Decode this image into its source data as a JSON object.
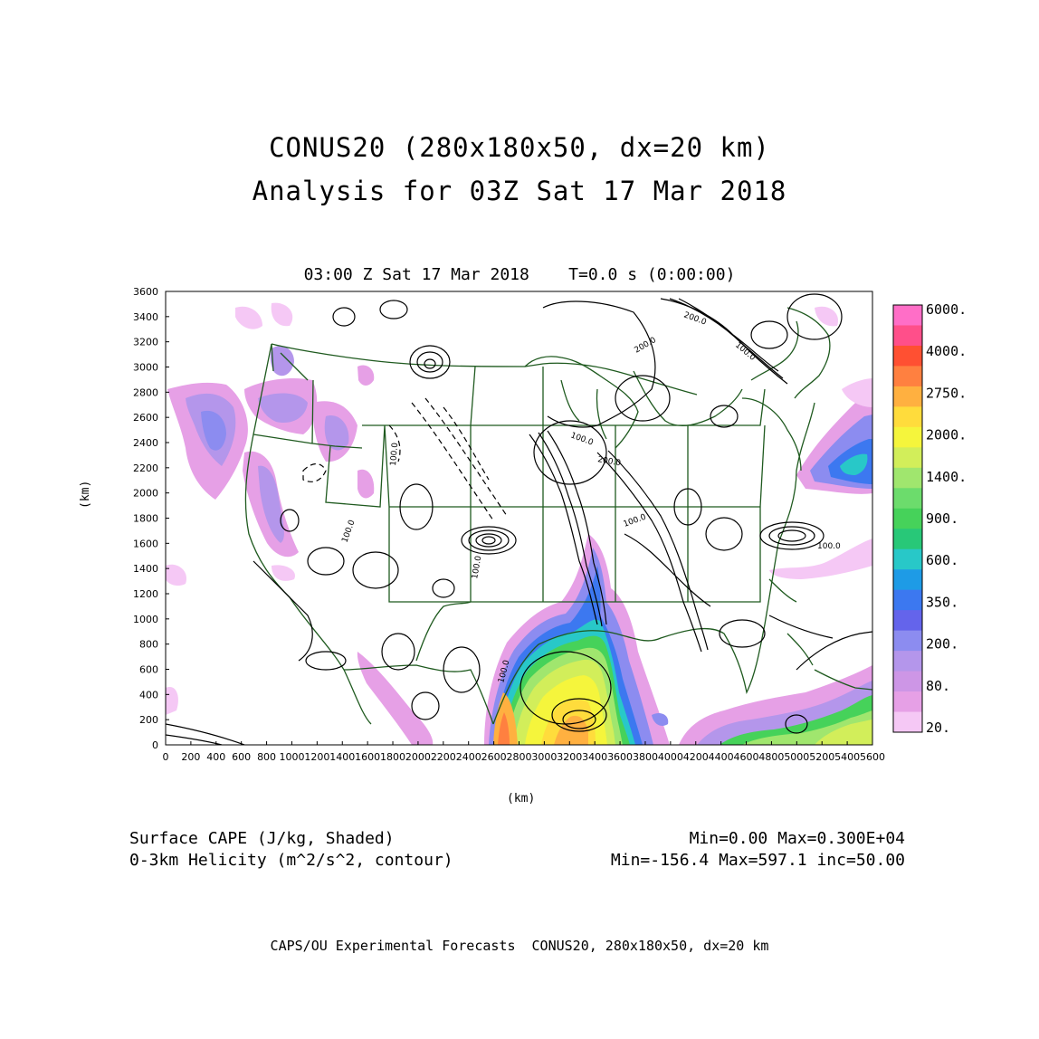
{
  "title": {
    "line1": "CONUS20 (280x180x50, dx=20 km)",
    "line2": "Analysis for 03Z Sat 17 Mar 2018"
  },
  "subtitle": "03:00 Z Sat 17 Mar 2018    T=0.0 s (0:00:00)",
  "axes": {
    "x_unit": "(km)",
    "y_unit": "(km)",
    "x_ticks": [
      "0",
      "200",
      "400",
      "600",
      "800",
      "1000",
      "1200",
      "1400",
      "1600",
      "1800",
      "2000",
      "2200",
      "2400",
      "2600",
      "2800",
      "3000",
      "3200",
      "3400",
      "3600",
      "3800",
      "4000",
      "4200",
      "4400",
      "4600",
      "4800",
      "5000",
      "5200",
      "5400",
      "5600"
    ],
    "y_ticks": [
      "0",
      "200",
      "400",
      "600",
      "800",
      "1000",
      "1200",
      "1400",
      "1600",
      "1800",
      "2000",
      "2200",
      "2400",
      "2600",
      "2800",
      "3000",
      "3200",
      "3400",
      "3600"
    ],
    "x_range": [
      0,
      5600
    ],
    "y_range": [
      0,
      3600
    ]
  },
  "colorbar": {
    "labels": [
      "6000.",
      "4000.",
      "2750.",
      "2000.",
      "1400.",
      "900.",
      "600.",
      "350.",
      "200.",
      "80.",
      "20."
    ],
    "colors": [
      "#ff6ec7",
      "#ff4f8a",
      "#ff5032",
      "#ff8040",
      "#ffb040",
      "#ffdc3c",
      "#f5f53c",
      "#d2ee5a",
      "#a0e66e",
      "#6cdc6c",
      "#46d25a",
      "#28c878",
      "#28c8c8",
      "#1e9be6",
      "#3c78f0",
      "#6464eb",
      "#8c8cf0",
      "#b496eb",
      "#cd96e6",
      "#e6a0e6",
      "#f5c8f5"
    ]
  },
  "contour_labels": [
    "100.0",
    "200.0",
    "100.0",
    "200.0",
    "100.0",
    "100.0",
    "200.0",
    "100.0",
    "100.0",
    "100.0",
    "100.0"
  ],
  "variables": {
    "shaded": "Surface CAPE (J/kg, Shaded)",
    "contour": "0-3km Helicity (m^2/s^2, contour)",
    "shaded_stats": "Min=0.00 Max=0.300E+04",
    "contour_stats": "Min=-156.4 Max=597.1 inc=50.00"
  },
  "footer": "CAPS/OU Experimental Forecasts  CONUS20, 280x180x50, dx=20 km"
}
